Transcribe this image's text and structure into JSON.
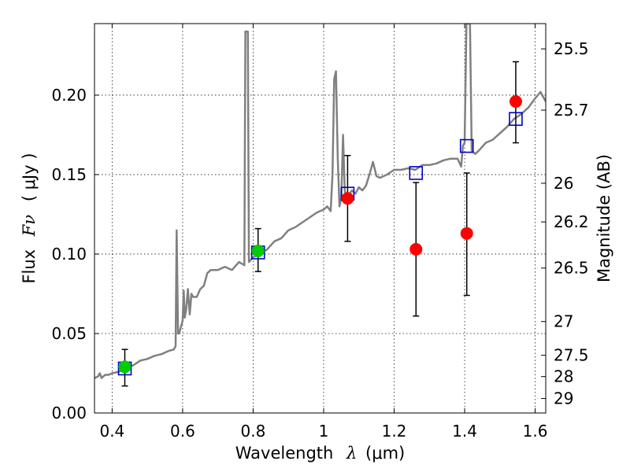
{
  "chart_data": {
    "type": "scatter",
    "xlabel": "Wavelength",
    "xlabel_math": "λ",
    "xlabel_unit": "(μm)",
    "ylabel": "Flux",
    "ylabel_math": "Fν",
    "ylabel_unit": "( μJy )",
    "y2label": "Magnitude (AB)",
    "xlim": [
      0.35,
      1.63
    ],
    "ylim": [
      0.0,
      0.245
    ],
    "grid": true,
    "x_ticks": [
      0.4,
      0.6,
      0.8,
      1.0,
      1.2,
      1.4,
      1.6
    ],
    "x_tick_labels": [
      "0.4",
      "0.6",
      "0.8",
      "1",
      "1.2",
      "1.4",
      "1.6"
    ],
    "y_ticks": [
      0.0,
      0.05,
      0.1,
      0.15,
      0.2
    ],
    "y_tick_labels": [
      "0.00",
      "0.05",
      "0.10",
      "0.15",
      "0.20"
    ],
    "y2_ticks": [
      {
        "label": "25.5",
        "value": 25.5
      },
      {
        "label": "25.7",
        "value": 25.7
      },
      {
        "label": "26",
        "value": 26
      },
      {
        "label": "26.2",
        "value": 26.2
      },
      {
        "label": "26.5",
        "value": 26.5
      },
      {
        "label": "27",
        "value": 27
      },
      {
        "label": "27.5",
        "value": 27.5
      },
      {
        "label": "28",
        "value": 28
      },
      {
        "label": "29",
        "value": 29
      }
    ],
    "series": [
      {
        "kind": "line",
        "color": "#808080",
        "points": [
          [
            0.35,
            0.022
          ],
          [
            0.36,
            0.023
          ],
          [
            0.365,
            0.025
          ],
          [
            0.37,
            0.022
          ],
          [
            0.38,
            0.024
          ],
          [
            0.39,
            0.024
          ],
          [
            0.4,
            0.025
          ],
          [
            0.42,
            0.026
          ],
          [
            0.44,
            0.028
          ],
          [
            0.46,
            0.03
          ],
          [
            0.48,
            0.033
          ],
          [
            0.5,
            0.034
          ],
          [
            0.52,
            0.036
          ],
          [
            0.54,
            0.037
          ],
          [
            0.56,
            0.039
          ],
          [
            0.575,
            0.04
          ],
          [
            0.58,
            0.042
          ],
          [
            0.583,
            0.115
          ],
          [
            0.587,
            0.05
          ],
          [
            0.59,
            0.05
          ],
          [
            0.6,
            0.058
          ],
          [
            0.603,
            0.077
          ],
          [
            0.606,
            0.06
          ],
          [
            0.61,
            0.065
          ],
          [
            0.615,
            0.078
          ],
          [
            0.62,
            0.062
          ],
          [
            0.625,
            0.075
          ],
          [
            0.63,
            0.073
          ],
          [
            0.64,
            0.073
          ],
          [
            0.65,
            0.078
          ],
          [
            0.66,
            0.08
          ],
          [
            0.67,
            0.088
          ],
          [
            0.68,
            0.09
          ],
          [
            0.7,
            0.09
          ],
          [
            0.72,
            0.092
          ],
          [
            0.74,
            0.09
          ],
          [
            0.76,
            0.095
          ],
          [
            0.775,
            0.093
          ],
          [
            0.778,
            0.24
          ],
          [
            0.785,
            0.24
          ],
          [
            0.788,
            0.095
          ],
          [
            0.8,
            0.098
          ],
          [
            0.82,
            0.1
          ],
          [
            0.84,
            0.103
          ],
          [
            0.86,
            0.108
          ],
          [
            0.88,
            0.11
          ],
          [
            0.9,
            0.115
          ],
          [
            0.92,
            0.117
          ],
          [
            0.94,
            0.12
          ],
          [
            0.96,
            0.123
          ],
          [
            0.98,
            0.126
          ],
          [
            1.0,
            0.128
          ],
          [
            1.01,
            0.13
          ],
          [
            1.02,
            0.127
          ],
          [
            1.025,
            0.15
          ],
          [
            1.03,
            0.21
          ],
          [
            1.035,
            0.215
          ],
          [
            1.04,
            0.16
          ],
          [
            1.045,
            0.13
          ],
          [
            1.05,
            0.135
          ],
          [
            1.055,
            0.175
          ],
          [
            1.06,
            0.14
          ],
          [
            1.065,
            0.135
          ],
          [
            1.07,
            0.137
          ],
          [
            1.08,
            0.14
          ],
          [
            1.09,
            0.138
          ],
          [
            1.1,
            0.142
          ],
          [
            1.11,
            0.14
          ],
          [
            1.12,
            0.143
          ],
          [
            1.13,
            0.15
          ],
          [
            1.14,
            0.158
          ],
          [
            1.15,
            0.149
          ],
          [
            1.16,
            0.148
          ],
          [
            1.18,
            0.15
          ],
          [
            1.2,
            0.153
          ],
          [
            1.22,
            0.153
          ],
          [
            1.24,
            0.154
          ],
          [
            1.26,
            0.153
          ],
          [
            1.28,
            0.156
          ],
          [
            1.3,
            0.156
          ],
          [
            1.32,
            0.157
          ],
          [
            1.34,
            0.159
          ],
          [
            1.36,
            0.16
          ],
          [
            1.38,
            0.16
          ],
          [
            1.39,
            0.155
          ],
          [
            1.395,
            0.168
          ],
          [
            1.4,
            0.17
          ],
          [
            1.405,
            0.245
          ],
          [
            1.415,
            0.245
          ],
          [
            1.42,
            0.165
          ],
          [
            1.43,
            0.163
          ],
          [
            1.44,
            0.165
          ],
          [
            1.46,
            0.17
          ],
          [
            1.48,
            0.172
          ],
          [
            1.5,
            0.176
          ],
          [
            1.52,
            0.18
          ],
          [
            1.54,
            0.185
          ],
          [
            1.56,
            0.188
          ],
          [
            1.58,
            0.192
          ],
          [
            1.6,
            0.198
          ],
          [
            1.615,
            0.202
          ],
          [
            1.62,
            0.2
          ],
          [
            1.63,
            0.196
          ]
        ]
      },
      {
        "kind": "markers",
        "marker": "square-open",
        "color": "#0000cc",
        "points": [
          [
            0.436,
            0.028
          ],
          [
            0.814,
            0.101
          ],
          [
            1.068,
            0.138
          ],
          [
            1.262,
            0.151
          ],
          [
            1.406,
            0.168
          ],
          [
            1.545,
            0.185
          ]
        ]
      },
      {
        "kind": "markers",
        "marker": "circle",
        "color": "#00cc00",
        "points": [
          {
            "x": 0.436,
            "y": 0.029,
            "err_low": 0.017,
            "err_high": 0.04
          },
          {
            "x": 0.814,
            "y": 0.102,
            "err_low": 0.089,
            "err_high": 0.116
          }
        ]
      },
      {
        "kind": "markers",
        "marker": "circle",
        "color": "#ff0000",
        "points": [
          {
            "x": 1.068,
            "y": 0.135,
            "err_low": 0.108,
            "err_high": 0.162
          },
          {
            "x": 1.262,
            "y": 0.103,
            "err_low": 0.061,
            "err_high": 0.145
          },
          {
            "x": 1.406,
            "y": 0.113,
            "err_low": 0.074,
            "err_high": 0.151
          },
          {
            "x": 1.545,
            "y": 0.196,
            "err_low": 0.17,
            "err_high": 0.221
          }
        ]
      }
    ]
  }
}
